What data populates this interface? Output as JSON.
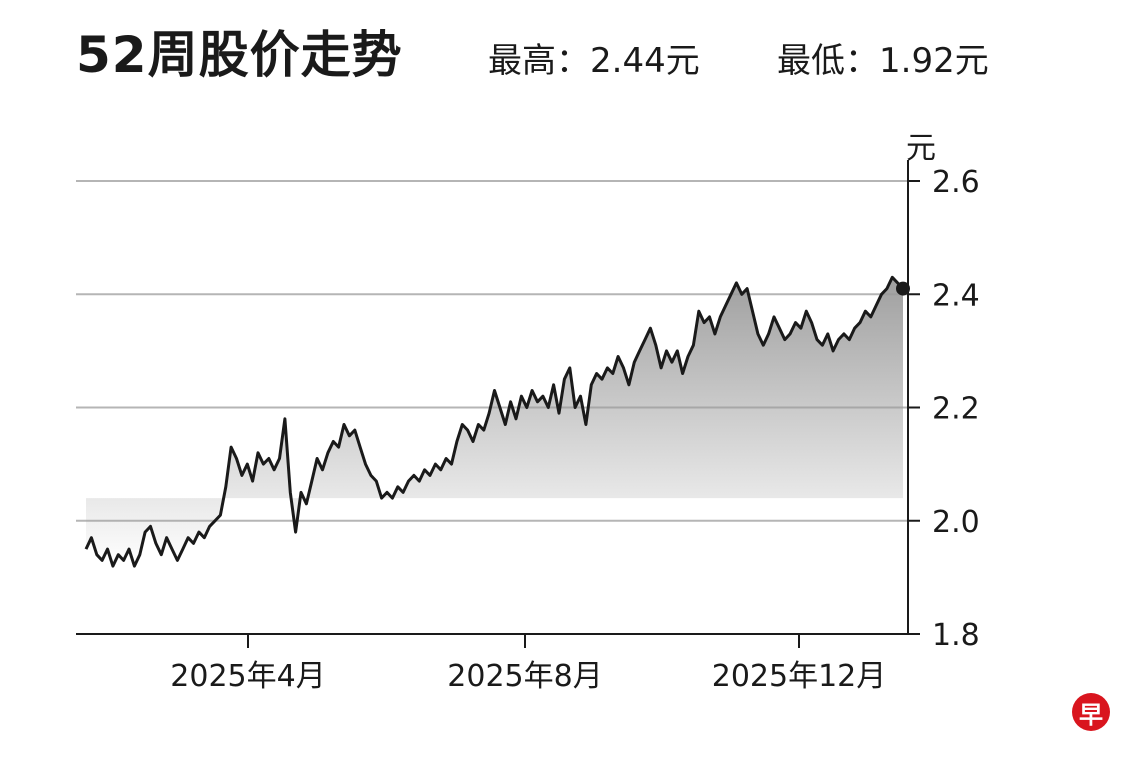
{
  "header": {
    "title": "52周股价走势",
    "high_text": "最高：2.44元",
    "low_text": "最低：1.92元"
  },
  "chart_data": {
    "type": "area",
    "title": "52周股价走势",
    "ylabel": "元",
    "ylim": [
      1.8,
      2.6
    ],
    "yticks": [
      "2.6",
      "2.4",
      "2.2",
      "2.0",
      "1.8"
    ],
    "xticks": [
      "2025年4月",
      "2025年8月",
      "2025年12月"
    ],
    "grid": true,
    "y_axis_position": "right",
    "line_color": "#1a1a1a",
    "fill_color": "#9a9a9a",
    "high": 2.44,
    "low": 1.92,
    "series": [
      {
        "values": [
          1.95,
          1.97,
          1.94,
          1.93,
          1.95,
          1.92,
          1.94,
          1.93,
          1.95,
          1.92,
          1.94,
          1.98,
          1.99,
          1.96,
          1.94,
          1.97,
          1.95,
          1.93,
          1.95,
          1.97,
          1.96,
          1.98,
          1.97,
          1.99,
          2.0,
          2.01,
          2.06,
          2.13,
          2.11,
          2.08,
          2.1,
          2.07,
          2.12,
          2.1,
          2.11,
          2.09,
          2.11,
          2.18,
          2.05,
          1.98,
          2.05,
          2.03,
          2.07,
          2.11,
          2.09,
          2.12,
          2.14,
          2.13,
          2.17,
          2.15,
          2.16,
          2.13,
          2.1,
          2.08,
          2.07,
          2.04,
          2.05,
          2.04,
          2.06,
          2.05,
          2.07,
          2.08,
          2.07,
          2.09,
          2.08,
          2.1,
          2.09,
          2.11,
          2.1,
          2.14,
          2.17,
          2.16,
          2.14,
          2.17,
          2.16,
          2.19,
          2.23,
          2.2,
          2.17,
          2.21,
          2.18,
          2.22,
          2.2,
          2.23,
          2.21,
          2.22,
          2.2,
          2.24,
          2.19,
          2.25,
          2.27,
          2.2,
          2.22,
          2.17,
          2.24,
          2.26,
          2.25,
          2.27,
          2.26,
          2.29,
          2.27,
          2.24,
          2.28,
          2.3,
          2.32,
          2.34,
          2.31,
          2.27,
          2.3,
          2.28,
          2.3,
          2.26,
          2.29,
          2.31,
          2.37,
          2.35,
          2.36,
          2.33,
          2.36,
          2.38,
          2.4,
          2.42,
          2.4,
          2.41,
          2.37,
          2.33,
          2.31,
          2.33,
          2.36,
          2.34,
          2.32,
          2.33,
          2.35,
          2.34,
          2.37,
          2.35,
          2.32,
          2.31,
          2.33,
          2.3,
          2.32,
          2.33,
          2.32,
          2.34,
          2.35,
          2.37,
          2.36,
          2.38,
          2.4,
          2.41,
          2.43,
          2.42,
          2.41
        ]
      }
    ]
  },
  "brand_badge": "早"
}
